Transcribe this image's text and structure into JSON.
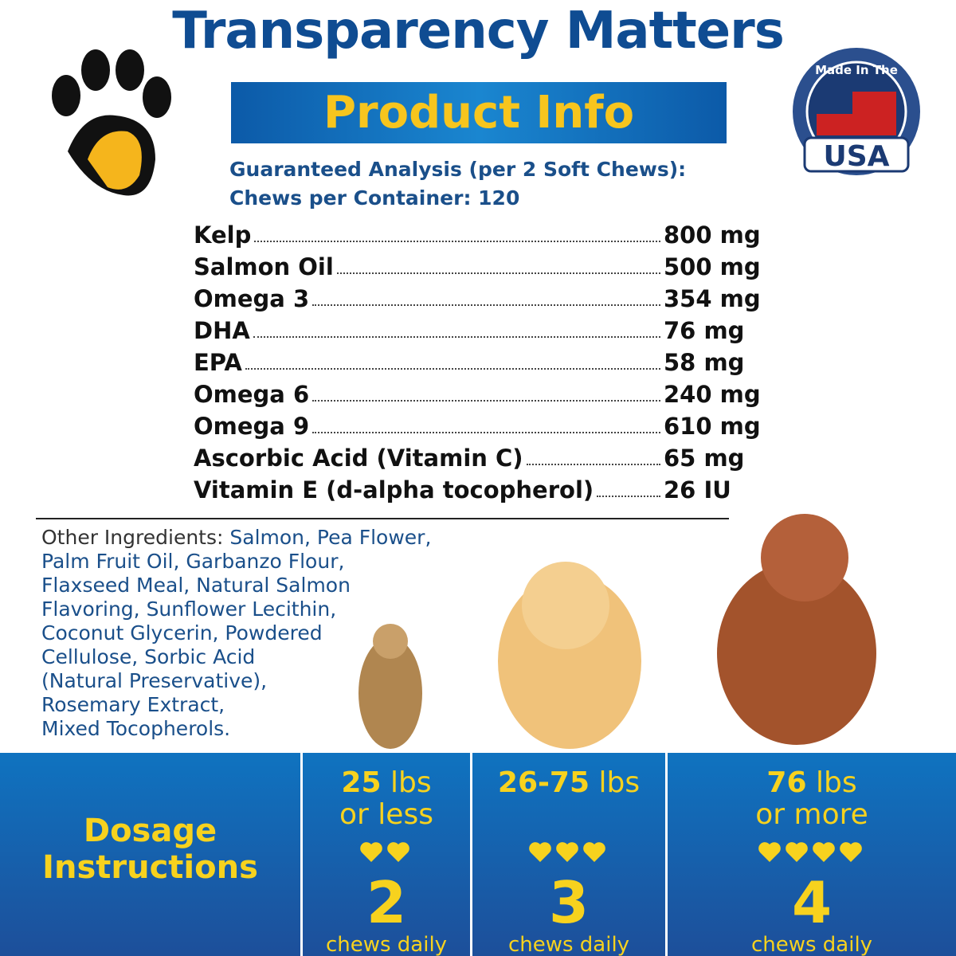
{
  "header": {
    "title": "Transparency Matters",
    "banner": "Product Info",
    "badge_top": "Made In The",
    "badge_main": "USA"
  },
  "analysis": {
    "heading": "Guaranteed Analysis (per 2 Soft Chews):",
    "container": "Chews per Container: 120",
    "rows": [
      {
        "name": "Kelp",
        "amount": "800 mg"
      },
      {
        "name": "Salmon Oil",
        "amount": "500 mg"
      },
      {
        "name": "Omega 3",
        "amount": "354 mg"
      },
      {
        "name": "DHA",
        "amount": "76 mg"
      },
      {
        "name": "EPA",
        "amount": "58 mg"
      },
      {
        "name": "Omega 6",
        "amount": "240 mg"
      },
      {
        "name": "Omega 9",
        "amount": "610 mg"
      },
      {
        "name": "Ascorbic Acid (Vitamin C)",
        "amount": "65 mg"
      },
      {
        "name": "Vitamin E (d-alpha tocopherol)",
        "amount": "26 IU"
      }
    ]
  },
  "ingredients": {
    "label": "Other Ingredients:",
    "lines": [
      "Salmon, Pea Flower,",
      "Palm Fruit Oil, Garbanzo Flour,",
      "Flaxseed Meal, Natural Salmon",
      "Flavoring, Sunflower Lecithin,",
      "Coconut Glycerin, Powdered",
      "Cellulose, Sorbic Acid",
      "(Natural Preservative),",
      "Rosemary Extract,",
      "Mixed Tocopherols."
    ]
  },
  "dosage": {
    "heading": [
      "Dosage",
      "Instructions"
    ],
    "columns": [
      {
        "weight": "25",
        "unit": "lbs",
        "note": "or less",
        "chews": 2,
        "label": "chews daily"
      },
      {
        "weight": "26-75",
        "unit": "lbs",
        "chews": 3,
        "label": "chews daily"
      },
      {
        "weight": "76",
        "unit": "lbs",
        "note": "or more",
        "chews": 4,
        "label": "chews daily"
      }
    ]
  }
}
